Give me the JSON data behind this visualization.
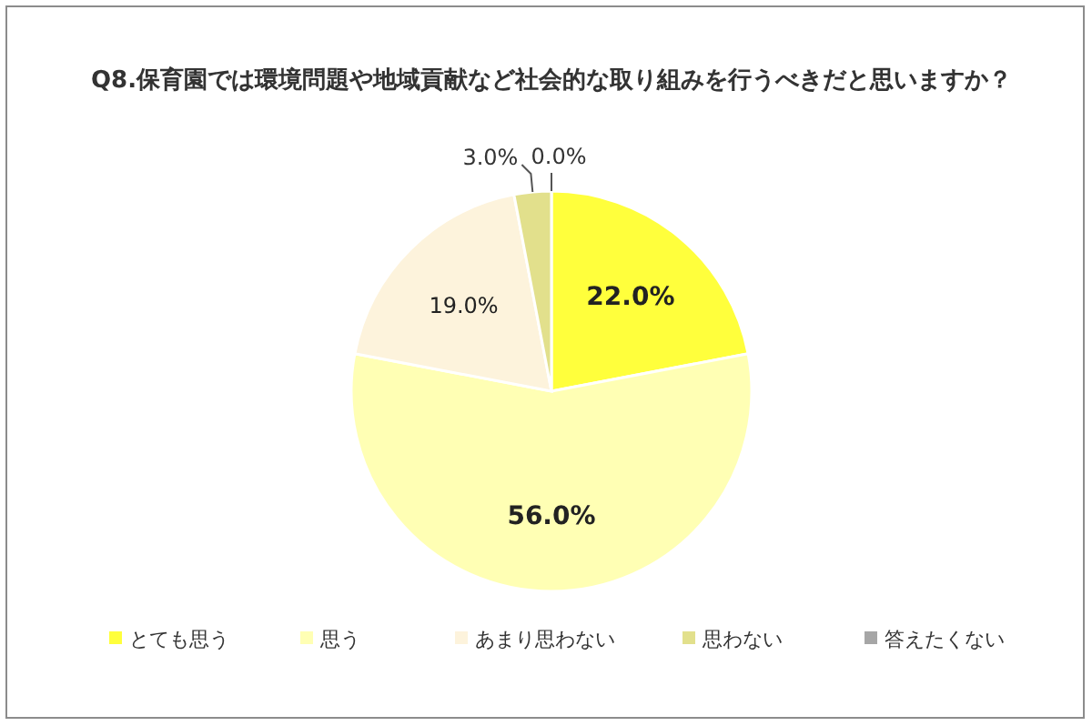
{
  "chart_data": {
    "type": "pie",
    "title": "Q8.保育園では環境問題や地域貢献など社会的な取り組みを行うべきだと思いますか？",
    "categories": [
      "とても思う",
      "思う",
      "あまり思わない",
      "思わない",
      "答えたくない"
    ],
    "values": [
      22,
      56,
      19,
      3,
      0
    ],
    "value_labels": [
      "22.0%",
      "56.0%",
      "19.0%",
      "3.0%",
      "0.0%"
    ],
    "colors": [
      "#ffff3c",
      "#ffffb4",
      "#fdf3dc",
      "#e2e08c",
      "#a6a6a6"
    ],
    "legend": "bottom"
  }
}
